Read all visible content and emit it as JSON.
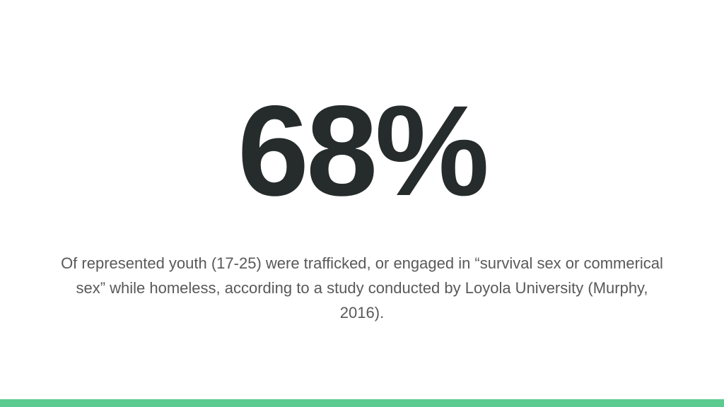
{
  "slide": {
    "stat": "68%",
    "caption": "Of represented youth (17-25) were trafficked, or engaged in “survival sex or commerical sex” while homeless, according to a study conducted by Loyola University (Murphy, 2016)."
  }
}
